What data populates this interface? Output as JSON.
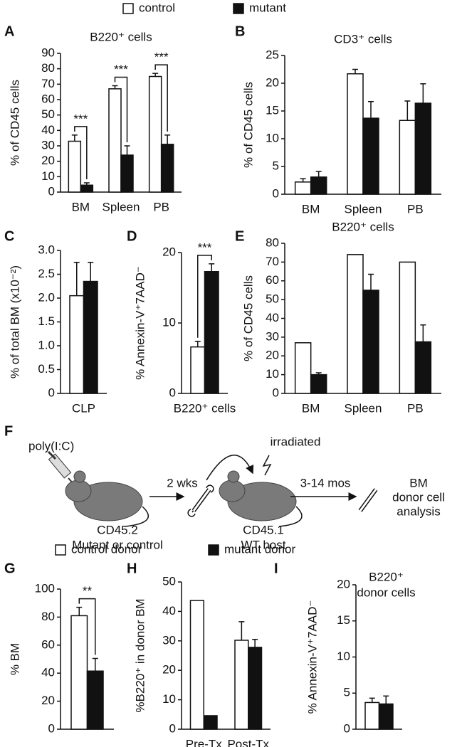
{
  "chart_data": [
    {
      "type": "bar",
      "panel": "A",
      "title": "B220⁺ cells",
      "ylabel": "% of CD45 cells",
      "categories": [
        "BM",
        "Spleen",
        "PB"
      ],
      "series": [
        {
          "name": "control",
          "color": "#ffffff",
          "values": [
            33,
            67,
            75
          ],
          "errors": [
            4,
            2,
            2
          ]
        },
        {
          "name": "mutant",
          "color": "#111111",
          "values": [
            4.5,
            24,
            31
          ],
          "errors": [
            1.5,
            6,
            6
          ]
        }
      ],
      "annotations": [
        {
          "label": "***",
          "category": 0
        },
        {
          "label": "***",
          "category": 1
        },
        {
          "label": "***",
          "category": 2
        }
      ],
      "ylim": [
        0,
        90
      ],
      "yticks": [
        0,
        10,
        20,
        30,
        40,
        50,
        60,
        70,
        80,
        90
      ]
    },
    {
      "type": "bar",
      "panel": "B",
      "title": "CD3⁺ cells",
      "ylabel": "% of CD45 cells",
      "categories": [
        "BM",
        "Spleen",
        "PB"
      ],
      "series": [
        {
          "color": "#ffffff",
          "values": [
            2.2,
            21.7,
            13.3
          ],
          "errors": [
            0.6,
            0.8,
            3.5
          ]
        },
        {
          "color": "#111111",
          "values": [
            3.1,
            13.7,
            16.4
          ],
          "errors": [
            1,
            3,
            3.5
          ]
        }
      ],
      "ylim": [
        0,
        25
      ],
      "yticks": [
        0,
        5,
        10,
        15,
        20,
        25
      ]
    },
    {
      "type": "bar",
      "panel": "C",
      "ylabel": "% of total BM (x10⁻²)",
      "categories": [
        "CLP"
      ],
      "series": [
        {
          "color": "#ffffff",
          "values": [
            2.05
          ],
          "errors": [
            0.7
          ]
        },
        {
          "color": "#111111",
          "values": [
            2.35
          ],
          "errors": [
            0.4
          ]
        }
      ],
      "ylim": [
        0,
        3
      ],
      "yticks": [
        0,
        0.5,
        {
          "value": 1,
          "label": "1.0"
        },
        1.5,
        {
          "value": 2,
          "label": "2.0"
        },
        2.5,
        {
          "value": 3,
          "label": "3.0"
        }
      ]
    },
    {
      "type": "bar",
      "panel": "D",
      "ylabel": "% Annexin-V⁺7AAD⁻",
      "categories": [
        "B220⁺ cells"
      ],
      "series": [
        {
          "color": "#ffffff",
          "values": [
            6.6
          ],
          "errors": [
            0.8
          ]
        },
        {
          "color": "#111111",
          "values": [
            17.3
          ],
          "errors": [
            1.1
          ]
        }
      ],
      "annotations": [
        {
          "label": "***",
          "category": 0
        }
      ],
      "ylim": [
        0,
        20
      ],
      "yticks": [
        0,
        10,
        20
      ]
    },
    {
      "type": "bar",
      "panel": "E",
      "title": "B220⁺ cells",
      "ylabel": "% of CD45 cells",
      "categories": [
        "BM",
        "Spleen",
        "PB"
      ],
      "series": [
        {
          "color": "#ffffff",
          "values": [
            27,
            74,
            70
          ],
          "errors": [
            null,
            null,
            null
          ]
        },
        {
          "color": "#111111",
          "values": [
            10,
            55,
            27.5
          ],
          "errors": [
            1,
            8.5,
            9
          ]
        }
      ],
      "ylim": [
        0,
        80
      ],
      "yticks": [
        0,
        10,
        20,
        30,
        40,
        50,
        60,
        70,
        80
      ]
    },
    {
      "type": "bar",
      "panel": "G",
      "ylabel": "% BM",
      "categories": [
        null
      ],
      "series": [
        {
          "name": "control donor",
          "color": "#ffffff",
          "values": [
            81
          ],
          "errors": [
            6
          ]
        },
        {
          "name": "mutant donor",
          "color": "#111111",
          "values": [
            41.5
          ],
          "errors": [
            9
          ]
        }
      ],
      "annotations": [
        {
          "label": "**",
          "category": 0
        }
      ],
      "ylim": [
        0,
        100
      ],
      "yticks": [
        0,
        20,
        40,
        60,
        80,
        100
      ]
    },
    {
      "type": "bar",
      "panel": "H",
      "ylabel": "%B220⁺ in donor BM",
      "categories": [
        "Pre-Tx",
        "Post-Tx"
      ],
      "series": [
        {
          "color": "#ffffff",
          "values": [
            43.7,
            30.2
          ],
          "errors": [
            null,
            6.3
          ]
        },
        {
          "color": "#111111",
          "values": [
            4.6,
            27.8
          ],
          "errors": [
            null,
            2.7
          ]
        }
      ],
      "ylim": [
        0,
        50
      ],
      "yticks": [
        0,
        10,
        20,
        30,
        40,
        50
      ]
    },
    {
      "type": "bar",
      "panel": "I",
      "title": [
        "B220⁺",
        "donor cells"
      ],
      "ylabel": "% Annexin-V⁺7AAD⁻",
      "categories": [
        null
      ],
      "series": [
        {
          "color": "#ffffff",
          "values": [
            3.7
          ],
          "errors": [
            0.6
          ]
        },
        {
          "color": "#111111",
          "values": [
            3.5
          ],
          "errors": [
            1.1
          ]
        }
      ],
      "ylim": [
        0,
        20
      ],
      "yticks": [
        0,
        5,
        10,
        15,
        20
      ]
    }
  ],
  "diagram": {
    "panel": "F",
    "injection": "poly(I:C)",
    "interval1": "2 wks",
    "treatment": "irradiated",
    "interval2": "3-14 mos",
    "donor_strain": "CD45.2",
    "donor_type": "Mutant or control",
    "host_strain": "CD45.1",
    "host_type": "WT host",
    "outcome": [
      "BM",
      "donor cell",
      "analysis"
    ]
  }
}
